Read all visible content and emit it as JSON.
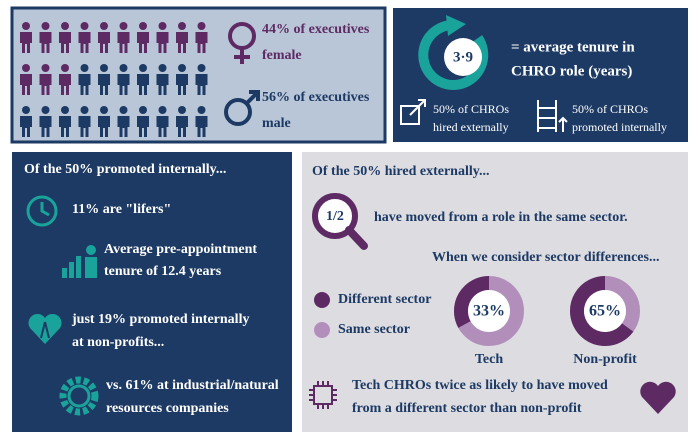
{
  "top_left": {
    "female_line1": "44% of executives",
    "female_line2": "female",
    "male_line1": "56% of executives",
    "male_line2": "male"
  },
  "top_right": {
    "tenure_value": "3·9",
    "tenure_line1": "= average tenure in",
    "tenure_line2": "CHRO role (years)",
    "hired_line1": "50% of CHROs",
    "hired_line2": "hired externally",
    "promoted_line1": "50% of CHROs",
    "promoted_line2": "promoted internally"
  },
  "internal": {
    "heading": "Of the 50% promoted internally...",
    "items": [
      [
        "11% are \"lifers\""
      ],
      [
        "Average pre-appointment",
        "tenure of 12.4 years"
      ],
      [
        "just 19% promoted internally",
        "at non-profits..."
      ],
      [
        "vs. 61% at industrial/natural",
        "resources companies"
      ]
    ]
  },
  "external": {
    "heading": "Of the 50% hired externally...",
    "fraction": "1/2",
    "fraction_text": "have moved from a role in the same sector.",
    "sector_heading": "When we consider sector differences...",
    "legend": [
      "Different sector",
      "Same sector"
    ],
    "donuts": [
      {
        "label": "Tech",
        "value": 33,
        "value_label": "33%"
      },
      {
        "label": "Non-profit",
        "value": 65,
        "value_label": "65%"
      }
    ],
    "footer": [
      "Tech CHROs twice as likely to have moved",
      "from a different sector than non-profit"
    ]
  }
}
